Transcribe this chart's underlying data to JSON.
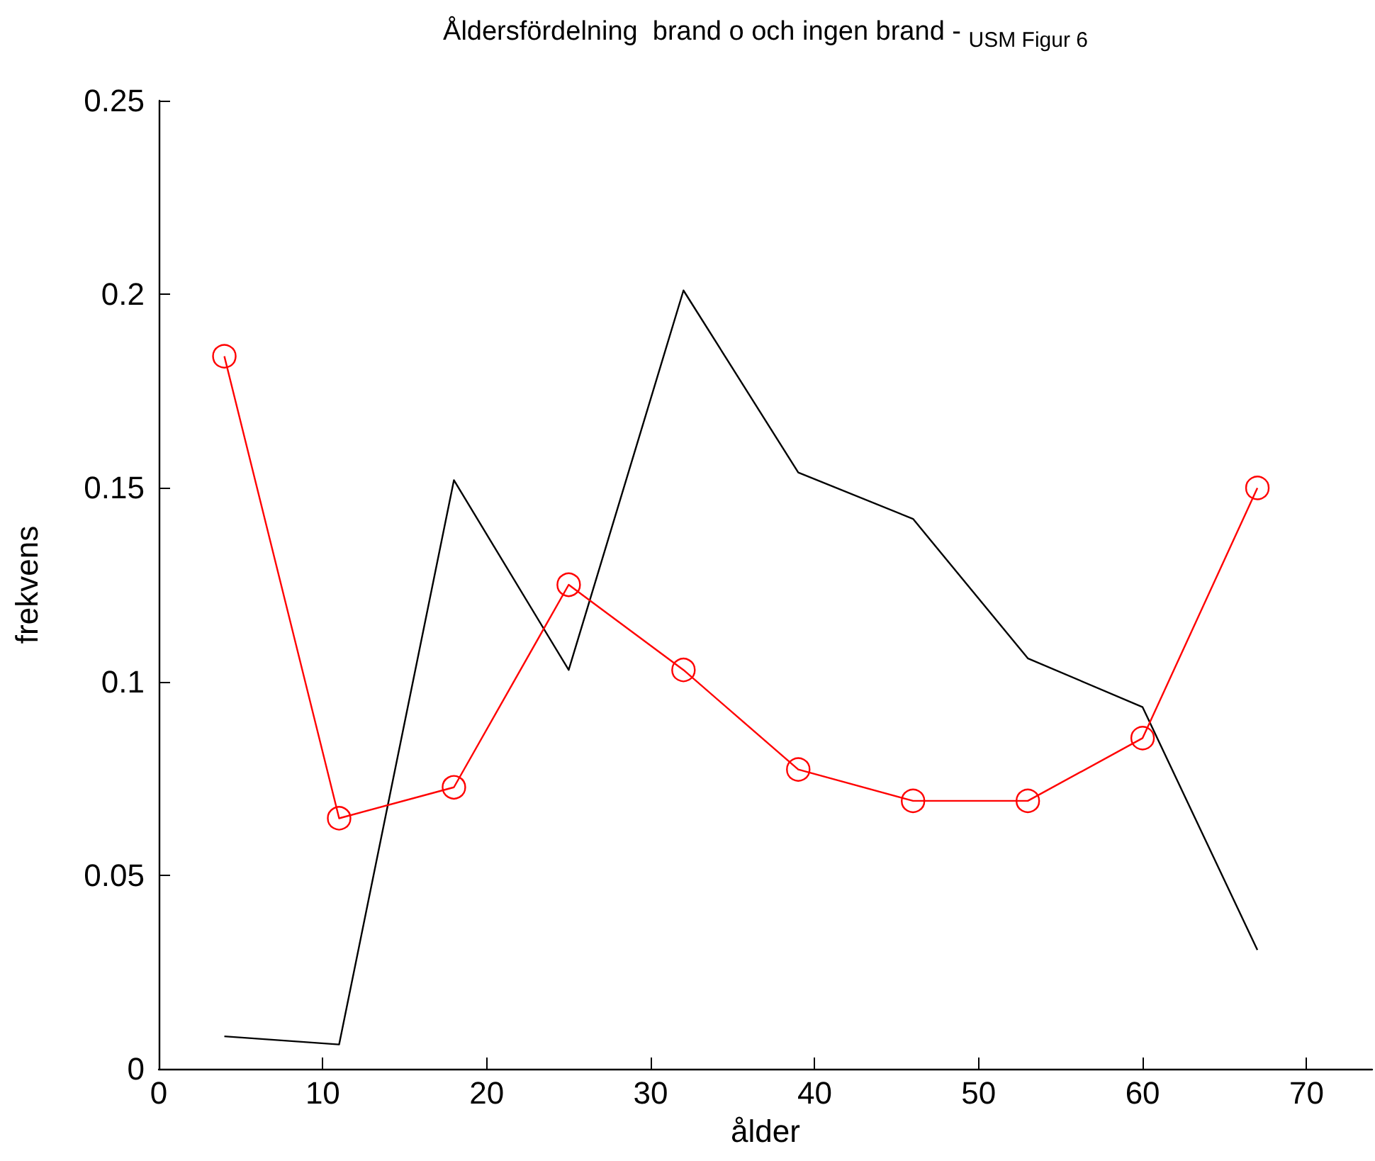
{
  "chart_data": {
    "type": "line",
    "title": "Åldersfördelning  brand o och ingen brand - $_{USM Figur 6}$",
    "xlabel": "ålder",
    "ylabel": "frekvens",
    "x": [
      4,
      11,
      18,
      25,
      32,
      39,
      46,
      53,
      60,
      67
    ],
    "series": [
      {
        "color": "#000000",
        "marker": "none",
        "values": [
          0.0084,
          0.0063,
          0.152,
          0.103,
          0.201,
          0.154,
          0.142,
          0.106,
          0.0934,
          0.0307
        ]
      },
      {
        "color": "#ff0000",
        "marker": "circle",
        "values": [
          0.184,
          0.0647,
          0.0727,
          0.125,
          0.103,
          0.0773,
          0.0692,
          0.0692,
          0.0854,
          0.15
        ]
      }
    ],
    "xlim": [
      0,
      74
    ],
    "xticks": [
      0,
      10,
      20,
      30,
      40,
      50,
      60,
      70
    ],
    "ylim": [
      0,
      0.25
    ],
    "yticks": [
      0,
      0.05,
      0.1,
      0.15,
      0.2,
      0.25
    ]
  }
}
